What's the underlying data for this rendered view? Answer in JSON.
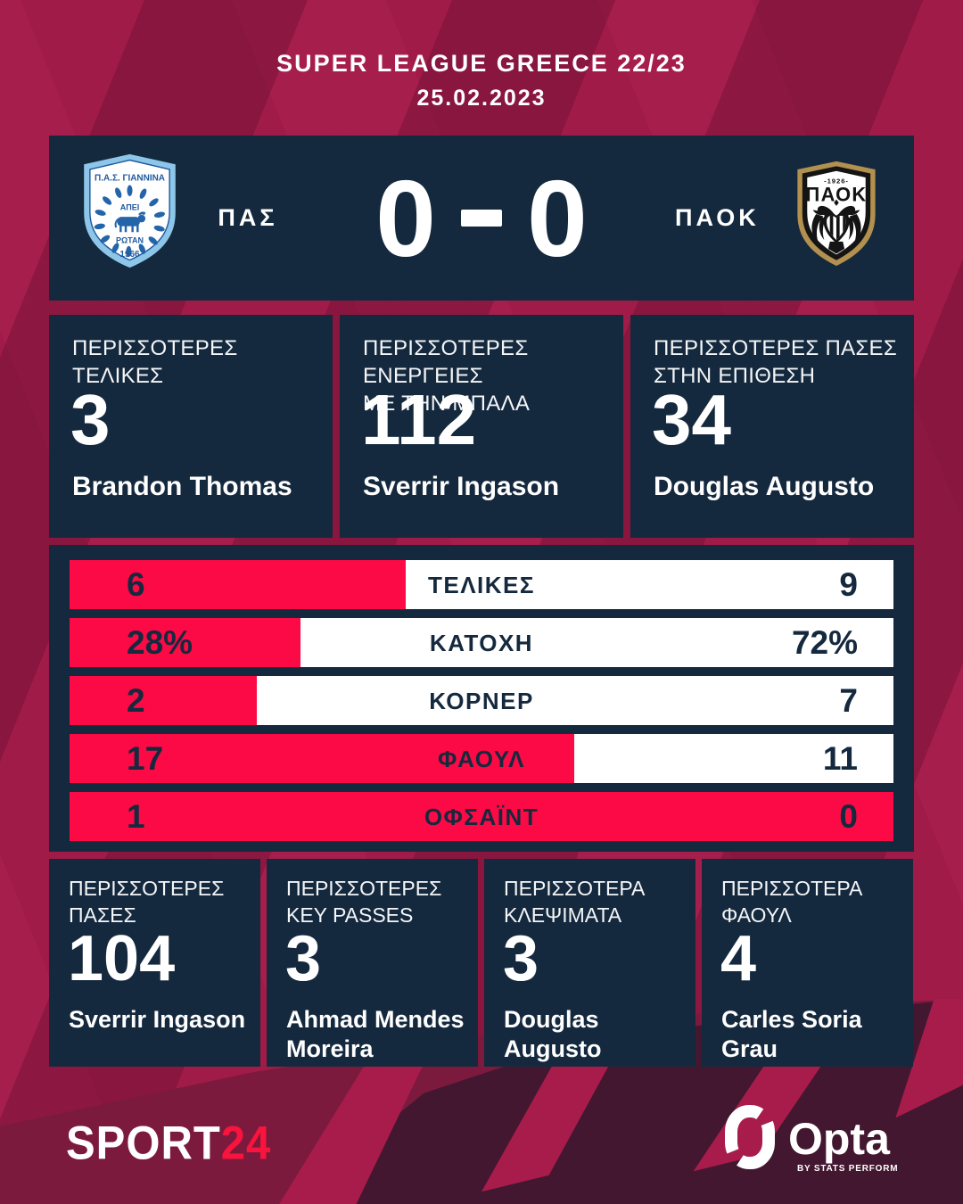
{
  "header": {
    "title": "SUPER LEAGUE GREECE 22/23",
    "date": "25.02.2023"
  },
  "scoreboard": {
    "home": {
      "abbr": "ΠΑΣ",
      "crest_title": "Π.Α.Σ. ΓΙΑΝΝΙΝΑ",
      "crest_upper": "ΑΠΕΙ",
      "crest_lower": "ΡΩΤΑΝ",
      "crest_year": "1966"
    },
    "away": {
      "abbr": "ΠΑΟΚ",
      "crest_title": "ΠΑΟΚ",
      "crest_year": "-1926-"
    },
    "home_score": "0",
    "away_score": "0"
  },
  "top_stats": [
    {
      "label_line1": "ΠΕΡΙΣΣΟΤΕΡΕΣ",
      "label_line2": "ΤΕΛΙΚΕΣ",
      "value": "3",
      "player": "Brandon Thomas"
    },
    {
      "label_line1": "ΠΕΡΙΣΣΟΤΕΡΕΣ ΕΝΕΡΓΕΙΕΣ",
      "label_line2": "ΜΕ ΤΗΝ ΜΠΑΛΑ",
      "value": "112",
      "player": "Sverrir Ingason"
    },
    {
      "label_line1": "ΠΕΡΙΣΣΟΤΕΡΕΣ ΠΑΣΕΣ",
      "label_line2": "ΣΤΗΝ ΕΠΙΘΕΣΗ",
      "value": "34",
      "player": "Douglas Augusto"
    }
  ],
  "chart_data": {
    "type": "bar",
    "orientation": "horizontal",
    "categories": [
      "ΤΕΛΙΚΕΣ",
      "ΚΑΤΟΧΗ",
      "ΚΟΡΝΕΡ",
      "ΦΑΟΥΛ",
      "ΟΦΣΑΪΝΤ"
    ],
    "series": [
      {
        "name": "ΠΑΣ",
        "color": "#FB0A45",
        "values": [
          "6",
          "28%",
          "2",
          "17",
          "1"
        ]
      },
      {
        "name": "ΠΑΟΚ",
        "color": "#FFFFFF",
        "values": [
          "9",
          "72%",
          "7",
          "11",
          "0"
        ]
      }
    ],
    "home_fill_fractions": [
      0.408,
      0.28,
      0.227,
      0.613,
      1.0
    ],
    "legend_position": "none",
    "grid": false
  },
  "bottom_stats": [
    {
      "label_line1": "ΠΕΡΙΣΣΟΤΕΡΕΣ",
      "label_line2": "ΠΑΣΕΣ",
      "value": "104",
      "player": "Sverrir Ingason"
    },
    {
      "label_line1": "ΠΕΡΙΣΣΟΤΕΡΕΣ",
      "label_line2": "KEY PASSES",
      "value": "3",
      "player": "Ahmad Mendes Moreira"
    },
    {
      "label_line1": "ΠΕΡΙΣΣΟΤΕΡΑ",
      "label_line2": "ΚΛΕΨΙΜΑΤΑ",
      "value": "3",
      "player": "Douglas Augusto"
    },
    {
      "label_line1": "ΠΕΡΙΣΣΟΤΕΡΑ",
      "label_line2": "ΦΑΟΥΛ",
      "value": "4",
      "player": "Carles Soria Grau"
    }
  ],
  "footer": {
    "sport24_white": "SPORT",
    "sport24_red": "24",
    "opta_brand": "Opta",
    "opta_byline": "BY STATS PERFORM"
  },
  "colors": {
    "background": "#A11B48",
    "panel_navy": "#15293E",
    "bar_red": "#FB0A45",
    "bottom_dark": "#431730",
    "paok_gold": "#B2904F",
    "pas_light_blue": "#8EC6E9",
    "pas_blue": "#2465A9",
    "sport24_red": "#F8143C"
  }
}
